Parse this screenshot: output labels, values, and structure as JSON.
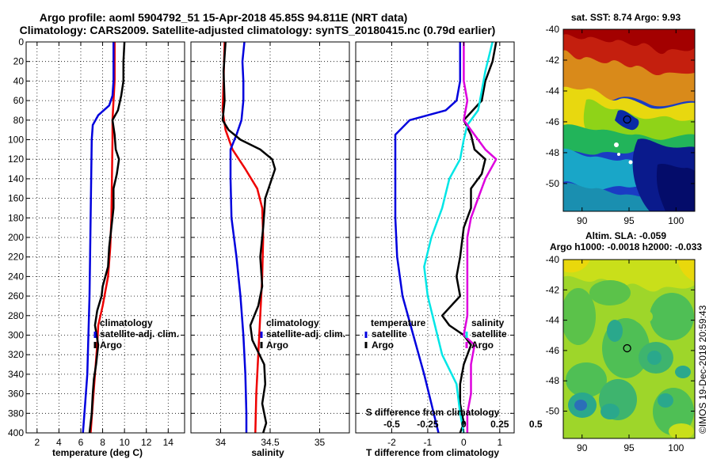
{
  "header": {
    "title_line1": "Argo profile: aoml 5904792_51 15-Apr-2018 45.85S 94.811E (NRT data)",
    "title_line2": "Climatology: CARS2009. Satellite-adjusted climatology: synTS_20180415.nc (0.79d earlier)"
  },
  "watermark": "©IMOS 19-Dec-2018 20:59:43",
  "colors": {
    "red": "#ee0000",
    "blue": "#0000dd",
    "black": "#000000",
    "cyan": "#00e6e6",
    "magenta": "#dd00dd"
  },
  "chart_data": [
    {
      "type": "line",
      "id": "temperature",
      "xlabel": "temperature (deg C)",
      "xlim": [
        1,
        15.5
      ],
      "ylim": [
        400,
        0
      ],
      "xticks": [
        "2",
        "4",
        "6",
        "8",
        "10",
        "12",
        "14"
      ],
      "xtick_values": [
        2,
        4,
        6,
        8,
        10,
        12,
        14
      ],
      "yticks": [
        0,
        20,
        40,
        60,
        80,
        100,
        120,
        140,
        160,
        180,
        200,
        220,
        240,
        260,
        280,
        300,
        320,
        340,
        360,
        380,
        400
      ],
      "legend": [
        "climatology",
        "satellite-adj. clim.",
        "Argo"
      ],
      "series": [
        {
          "name": "climatology",
          "color": "red",
          "points": [
            [
              9.1,
              0
            ],
            [
              9.1,
              40
            ],
            [
              9.0,
              60
            ],
            [
              8.9,
              80
            ],
            [
              8.9,
              100
            ],
            [
              8.85,
              140
            ],
            [
              8.8,
              180
            ],
            [
              8.7,
              210
            ],
            [
              8.5,
              240
            ],
            [
              8.0,
              270
            ],
            [
              7.6,
              290
            ],
            [
              7.5,
              310
            ],
            [
              7.3,
              340
            ],
            [
              7.1,
              370
            ],
            [
              6.9,
              400
            ]
          ]
        },
        {
          "name": "satellite-adj. clim.",
          "color": "blue",
          "points": [
            [
              9.0,
              0
            ],
            [
              9.0,
              40
            ],
            [
              8.9,
              55
            ],
            [
              8.6,
              65
            ],
            [
              7.6,
              75
            ],
            [
              7.1,
              85
            ],
            [
              7.0,
              100
            ],
            [
              6.95,
              140
            ],
            [
              6.9,
              180
            ],
            [
              6.85,
              220
            ],
            [
              6.8,
              260
            ],
            [
              6.7,
              300
            ],
            [
              6.6,
              340
            ],
            [
              6.4,
              370
            ],
            [
              6.2,
              400
            ]
          ]
        },
        {
          "name": "Argo",
          "color": "black",
          "points": [
            [
              10.0,
              0
            ],
            [
              9.9,
              20
            ],
            [
              9.9,
              40
            ],
            [
              9.7,
              55
            ],
            [
              9.4,
              70
            ],
            [
              8.9,
              80
            ],
            [
              9.1,
              95
            ],
            [
              9.2,
              110
            ],
            [
              9.5,
              120
            ],
            [
              9.3,
              135
            ],
            [
              9.0,
              150
            ],
            [
              9.0,
              170
            ],
            [
              8.8,
              190
            ],
            [
              8.6,
              210
            ],
            [
              8.5,
              230
            ],
            [
              8.0,
              250
            ],
            [
              7.9,
              260
            ],
            [
              7.5,
              275
            ],
            [
              7.3,
              290
            ],
            [
              7.6,
              310
            ],
            [
              7.4,
              330
            ],
            [
              7.2,
              345
            ],
            [
              7.1,
              360
            ],
            [
              7.0,
              380
            ],
            [
              6.8,
              400
            ]
          ]
        }
      ]
    },
    {
      "type": "line",
      "id": "salinity",
      "xlabel": "salinity",
      "xlim": [
        33.7,
        35.3
      ],
      "ylim": [
        400,
        0
      ],
      "xticks": [
        "34",
        "34.5",
        "35"
      ],
      "xtick_values": [
        34,
        34.5,
        35
      ],
      "yticks": [
        0,
        20,
        40,
        60,
        80,
        100,
        120,
        140,
        160,
        180,
        200,
        220,
        240,
        260,
        280,
        300,
        320,
        340,
        360,
        380,
        400
      ],
      "legend": [
        "climatology",
        "satellite-adj. clim.",
        "Argo"
      ],
      "series": [
        {
          "name": "climatology",
          "color": "red",
          "points": [
            [
              34.04,
              0
            ],
            [
              34.03,
              40
            ],
            [
              34.02,
              70
            ],
            [
              34.05,
              90
            ],
            [
              34.12,
              110
            ],
            [
              34.25,
              130
            ],
            [
              34.37,
              150
            ],
            [
              34.42,
              170
            ],
            [
              34.43,
              200
            ],
            [
              34.42,
              240
            ],
            [
              34.4,
              280
            ],
            [
              34.38,
              320
            ],
            [
              34.36,
              360
            ],
            [
              34.35,
              400
            ]
          ]
        },
        {
          "name": "satellite-adj. clim.",
          "color": "blue",
          "points": [
            [
              34.24,
              0
            ],
            [
              34.22,
              20
            ],
            [
              34.23,
              40
            ],
            [
              34.23,
              60
            ],
            [
              34.21,
              80
            ],
            [
              34.16,
              95
            ],
            [
              34.1,
              110
            ],
            [
              34.1,
              140
            ],
            [
              34.11,
              180
            ],
            [
              34.16,
              220
            ],
            [
              34.2,
              260
            ],
            [
              34.23,
              300
            ],
            [
              34.25,
              340
            ],
            [
              34.26,
              380
            ],
            [
              34.26,
              400
            ]
          ]
        },
        {
          "name": "Argo",
          "color": "black",
          "points": [
            [
              34.05,
              0
            ],
            [
              34.03,
              30
            ],
            [
              34.04,
              60
            ],
            [
              34.02,
              80
            ],
            [
              34.08,
              90
            ],
            [
              34.2,
              100
            ],
            [
              34.4,
              110
            ],
            [
              34.52,
              120
            ],
            [
              34.55,
              130
            ],
            [
              34.5,
              145
            ],
            [
              34.45,
              160
            ],
            [
              34.43,
              190
            ],
            [
              34.4,
              220
            ],
            [
              34.42,
              250
            ],
            [
              34.38,
              270
            ],
            [
              34.3,
              290
            ],
            [
              34.32,
              305
            ],
            [
              34.44,
              330
            ],
            [
              34.45,
              350
            ],
            [
              34.42,
              370
            ],
            [
              34.46,
              390
            ],
            [
              34.43,
              400
            ]
          ]
        }
      ]
    },
    {
      "type": "line",
      "id": "difference",
      "xlabel": "T difference from climatology",
      "top_xlabel": "S difference from climatology",
      "xlim": [
        -3.0,
        1.4
      ],
      "ylim": [
        400,
        0
      ],
      "xticks": [
        "-2",
        "-1",
        "0",
        "1"
      ],
      "xtick_values": [
        -2,
        -1,
        0,
        1
      ],
      "top_xticks": [
        "-0.5",
        "-0.25",
        "0",
        "0.25",
        "0.5"
      ],
      "top_xtick_positions": [
        -2,
        -1,
        0,
        1,
        2
      ],
      "yticks": [
        0,
        20,
        40,
        60,
        80,
        100,
        120,
        140,
        160,
        180,
        200,
        220,
        240,
        260,
        280,
        300,
        320,
        340,
        360,
        380,
        400
      ],
      "legend_temperature": {
        "title": "temperature",
        "items": [
          "satellite",
          "Argo"
        ]
      },
      "legend_salinity": {
        "title": "salinity",
        "items": [
          "satellite",
          "Argo"
        ]
      },
      "series": [
        {
          "name": "temperature satellite",
          "color": "blue",
          "points": [
            [
              -0.1,
              0
            ],
            [
              -0.1,
              40
            ],
            [
              -0.2,
              60
            ],
            [
              -0.5,
              70
            ],
            [
              -1.5,
              80
            ],
            [
              -1.9,
              95
            ],
            [
              -1.9,
              110
            ],
            [
              -1.9,
              140
            ],
            [
              -1.9,
              180
            ],
            [
              -1.85,
              220
            ],
            [
              -1.7,
              260
            ],
            [
              -1.4,
              300
            ],
            [
              -1.1,
              340
            ],
            [
              -0.9,
              370
            ],
            [
              -0.7,
              400
            ]
          ]
        },
        {
          "name": "temperature Argo",
          "color": "black",
          "points": [
            [
              0.9,
              0
            ],
            [
              0.8,
              20
            ],
            [
              0.6,
              40
            ],
            [
              0.5,
              60
            ],
            [
              0.0,
              80
            ],
            [
              0.2,
              95
            ],
            [
              0.3,
              110
            ],
            [
              0.6,
              120
            ],
            [
              0.5,
              135
            ],
            [
              0.2,
              150
            ],
            [
              0.2,
              170
            ],
            [
              0.0,
              190
            ],
            [
              -0.1,
              220
            ],
            [
              -0.2,
              240
            ],
            [
              -0.1,
              260
            ],
            [
              -0.6,
              280
            ],
            [
              -0.4,
              290
            ],
            [
              0.0,
              300
            ],
            [
              0.2,
              310
            ],
            [
              0.0,
              330
            ],
            [
              -0.1,
              350
            ],
            [
              -0.1,
              370
            ],
            [
              0.0,
              390
            ],
            [
              -0.1,
              400
            ]
          ]
        },
        {
          "name": "salinity satellite",
          "color": "cyan",
          "points": [
            [
              0.8,
              0
            ],
            [
              0.6,
              30
            ],
            [
              0.5,
              50
            ],
            [
              0.4,
              70
            ],
            [
              0.1,
              85
            ],
            [
              0.0,
              100
            ],
            [
              -0.1,
              120
            ],
            [
              -0.4,
              140
            ],
            [
              -0.6,
              170
            ],
            [
              -0.9,
              200
            ],
            [
              -1.1,
              230
            ],
            [
              -1.0,
              260
            ],
            [
              -0.8,
              290
            ],
            [
              -0.6,
              320
            ],
            [
              -0.2,
              350
            ],
            [
              -0.1,
              380
            ],
            [
              0.0,
              400
            ]
          ]
        },
        {
          "name": "salinity Argo",
          "color": "magenta",
          "points": [
            [
              0.0,
              0
            ],
            [
              0.0,
              40
            ],
            [
              0.1,
              60
            ],
            [
              0.0,
              80
            ],
            [
              0.2,
              90
            ],
            [
              0.4,
              100
            ],
            [
              0.6,
              110
            ],
            [
              0.9,
              120
            ],
            [
              0.6,
              140
            ],
            [
              0.4,
              160
            ],
            [
              0.2,
              180
            ],
            [
              0.1,
              200
            ],
            [
              0.1,
              240
            ],
            [
              0.1,
              280
            ],
            [
              0.0,
              300
            ],
            [
              0.3,
              310
            ],
            [
              0.2,
              330
            ],
            [
              0.2,
              360
            ],
            [
              0.1,
              380
            ],
            [
              0.1,
              400
            ]
          ]
        }
      ]
    },
    {
      "type": "heatmap",
      "id": "sst_map",
      "title": "sat. SST: 8.74 Argo: 9.93",
      "xticks": [
        "90",
        "95",
        "100"
      ],
      "xtick_values": [
        90,
        95,
        100
      ],
      "yticks": [
        "-40",
        "-42",
        "-44",
        "-46",
        "-48",
        "-50"
      ],
      "ytick_values": [
        -40,
        -42,
        -44,
        -46,
        -48,
        -50
      ],
      "xlim": [
        88,
        102
      ],
      "ylim": [
        -51.8,
        -40
      ],
      "marker": [
        94.8,
        -45.85
      ]
    },
    {
      "type": "heatmap",
      "id": "sla_map",
      "title_line1": "Altim. SLA: -0.059",
      "title_line2": "Argo h1000: -0.0018 h2000: -0.033",
      "xticks": [
        "90",
        "95",
        "100"
      ],
      "xtick_values": [
        90,
        95,
        100
      ],
      "yticks": [
        "-40",
        "-42",
        "-44",
        "-46",
        "-48",
        "-50"
      ],
      "ytick_values": [
        -40,
        -42,
        -44,
        -46,
        -48,
        -50
      ],
      "xlim": [
        88,
        102
      ],
      "ylim": [
        -51.8,
        -40
      ],
      "marker": [
        94.8,
        -45.85
      ]
    }
  ]
}
